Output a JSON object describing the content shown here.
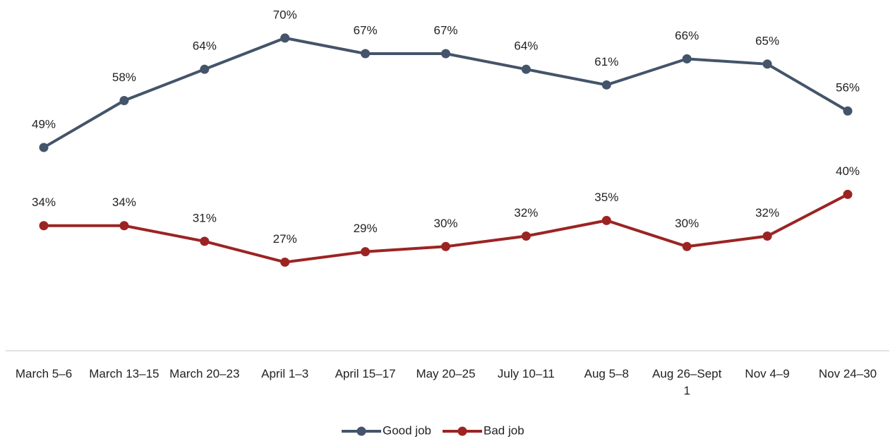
{
  "chart_data": {
    "type": "line",
    "categories": [
      "March 5–6",
      "March 13–15",
      "March 20–23",
      "April 1–3",
      "April 15–17",
      "May 20–25",
      "July 10–11",
      "Aug 5–8",
      "Aug 26–Sept 1",
      "Nov 4–9",
      "Nov 24–30"
    ],
    "series": [
      {
        "name": "Good job",
        "color": "#44546a",
        "values": [
          49,
          58,
          64,
          70,
          67,
          67,
          64,
          61,
          66,
          65,
          56
        ],
        "value_labels": [
          "49%",
          "58%",
          "64%",
          "70%",
          "67%",
          "67%",
          "64%",
          "61%",
          "66%",
          "65%",
          "56%"
        ]
      },
      {
        "name": "Bad job",
        "color": "#9b2423",
        "values": [
          34,
          34,
          31,
          27,
          29,
          30,
          32,
          35,
          30,
          32,
          40
        ],
        "value_labels": [
          "34%",
          "34%",
          "31%",
          "27%",
          "29%",
          "30%",
          "32%",
          "35%",
          "30%",
          "32%",
          "40%"
        ]
      }
    ],
    "ylim": [
      10,
      80
    ],
    "legend": "bottom"
  }
}
